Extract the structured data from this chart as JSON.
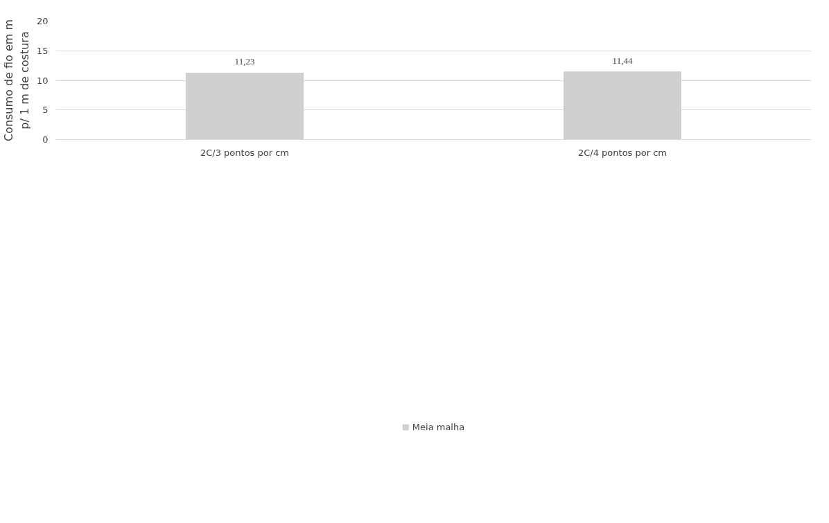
{
  "chart_data": {
    "type": "bar",
    "ylabel": "Consumo de fio em m\np/ 1 m de costura",
    "categories": [
      "2C/3 pontos por cm",
      "2C/4 pontos por cm"
    ],
    "series": [
      {
        "name": "Meia malha",
        "color": "#d0cece",
        "values": [
          11.23,
          11.44
        ],
        "value_labels": [
          "11,23",
          "11,44"
        ]
      }
    ],
    "ylim": [
      0,
      20
    ],
    "yticks": [
      0,
      5,
      10,
      15,
      20
    ],
    "grid": "y",
    "legend": "bottom"
  }
}
